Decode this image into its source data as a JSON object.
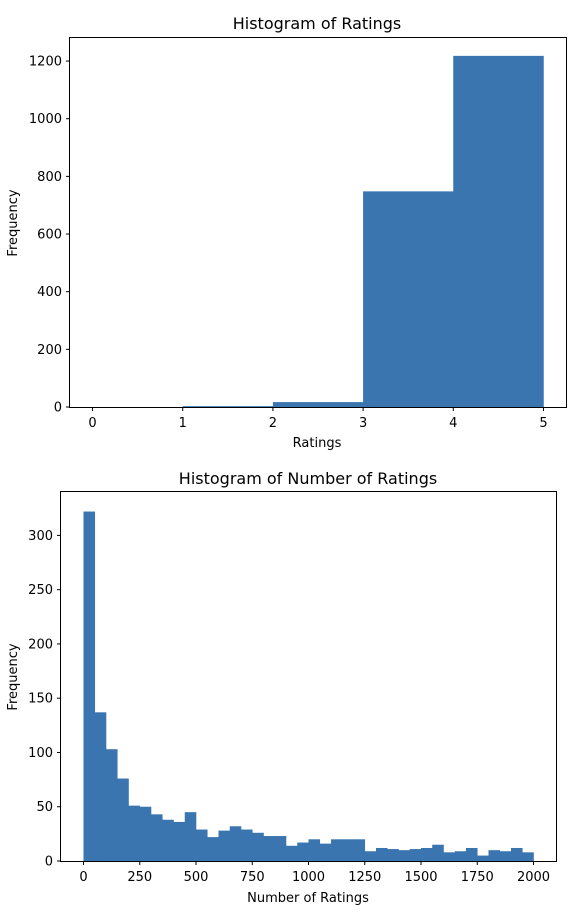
{
  "chart_data": [
    {
      "type": "bar",
      "title": "Histogram of Ratings",
      "xlabel": "Ratings",
      "ylabel": "Frequency",
      "xlim": [
        -0.25,
        5.25
      ],
      "ylim": [
        0,
        1280
      ],
      "xticks": [
        0,
        1,
        2,
        3,
        4,
        5
      ],
      "yticks": [
        0,
        200,
        400,
        600,
        800,
        1000,
        1200
      ],
      "bins": [
        {
          "x0": 0,
          "x1": 1,
          "value": 0
        },
        {
          "x0": 1,
          "x1": 2,
          "value": 3
        },
        {
          "x0": 2,
          "x1": 3,
          "value": 17
        },
        {
          "x0": 3,
          "x1": 4,
          "value": 748
        },
        {
          "x0": 4,
          "x1": 5,
          "value": 1218
        }
      ],
      "color": "#3a75b0",
      "grid": false,
      "legend": "none"
    },
    {
      "type": "bar",
      "title": "Histogram of Number of Ratings",
      "xlabel": "Number of Ratings",
      "ylabel": "Frequency",
      "xlim": [
        -100,
        2100
      ],
      "ylim": [
        0,
        340
      ],
      "xticks": [
        0,
        250,
        500,
        750,
        1000,
        1250,
        1500,
        1750,
        2000
      ],
      "yticks": [
        0,
        50,
        100,
        150,
        200,
        250,
        300
      ],
      "bin_start": 0,
      "bin_width": 50,
      "values": [
        322,
        137,
        103,
        76,
        51,
        50,
        43,
        38,
        36,
        45,
        29,
        22,
        28,
        32,
        29,
        26,
        23,
        23,
        14,
        17,
        20,
        16,
        20,
        20,
        20,
        9,
        12,
        11,
        10,
        11,
        12,
        15,
        8,
        9,
        12,
        5,
        10,
        9,
        12,
        8
      ],
      "color": "#3a75b0",
      "grid": false,
      "legend": "none"
    }
  ]
}
